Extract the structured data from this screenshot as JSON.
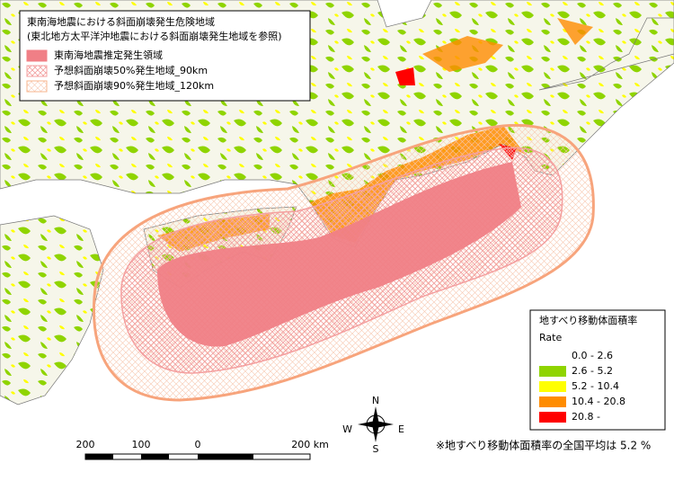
{
  "title": {
    "lines": [
      "東南海地震における斜面崩壊発生危険地域",
      "(東北地方太平洋沖地震における斜面崩壊発生地域を参照)"
    ]
  },
  "zone_legend": {
    "items": [
      {
        "label": "東南海地震推定発生領域",
        "color": "#f07f86"
      },
      {
        "label": "予想斜面崩壊50%発生地域_90km",
        "color": "#f4a0a0"
      },
      {
        "label": "予想斜面崩壊90%発生地域_120km",
        "color": "#f7b48c"
      }
    ]
  },
  "rate_legend": {
    "title": "地すべり移動体面積率",
    "subtitle": "Rate",
    "items": [
      {
        "label": "0.0 - 2.6",
        "color": "#ffffff"
      },
      {
        "label": "2.6 - 5.2",
        "color": "#8fd400"
      },
      {
        "label": "5.2 - 10.4",
        "color": "#ffff00"
      },
      {
        "label": "10.4 - 20.8",
        "color": "#ff8c00"
      },
      {
        "label": "20.8 -",
        "color": "#ff0000"
      }
    ]
  },
  "compass": {
    "n": "N",
    "e": "E",
    "s": "S",
    "w": "W"
  },
  "scale_bar": {
    "labels": [
      "200",
      "100",
      "0",
      "200 km"
    ]
  },
  "footnote": "※地すべり移動体面積率の全国平均は 5.2 %"
}
